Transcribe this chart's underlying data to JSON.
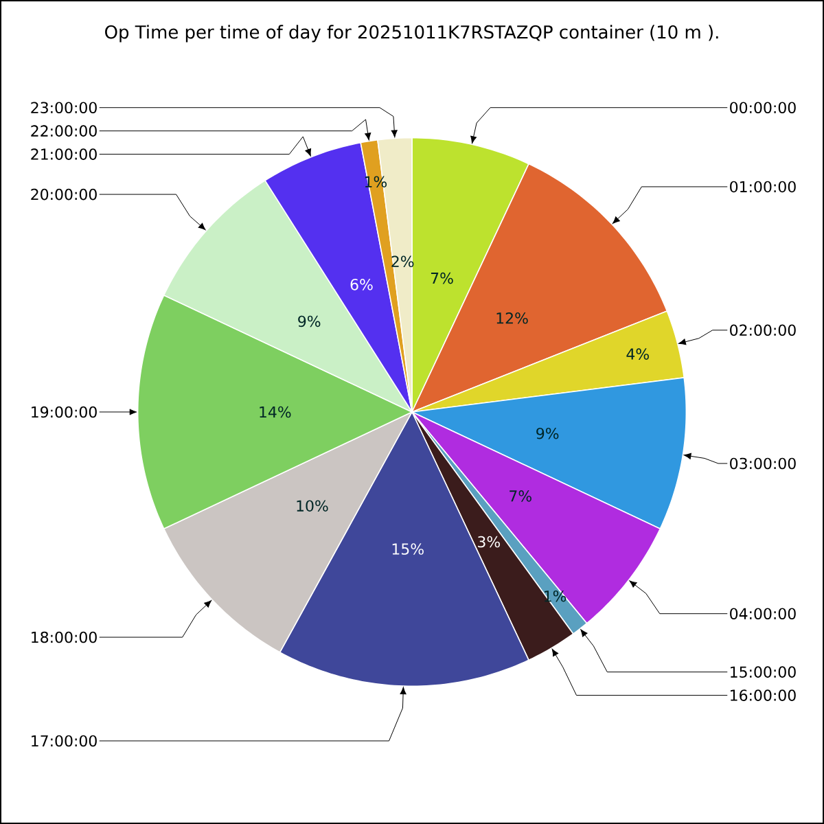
{
  "chart_data": {
    "type": "pie",
    "title": "Op Time per time of day for 20251011K7RSTAZQP container (10 m ).",
    "categories": [
      "00:00:00",
      "01:00:00",
      "02:00:00",
      "03:00:00",
      "04:00:00",
      "15:00:00",
      "16:00:00",
      "17:00:00",
      "18:00:00",
      "19:00:00",
      "20:00:00",
      "21:00:00",
      "22:00:00",
      "23:00:00"
    ],
    "values": [
      7,
      12,
      4,
      9,
      7,
      1,
      3,
      15,
      10,
      14,
      9,
      6,
      1,
      2
    ],
    "value_labels": [
      "7%",
      "12%",
      "4%",
      "9%",
      "7%",
      "1%",
      "3%",
      "15%",
      "10%",
      "14%",
      "9%",
      "6%",
      "1%",
      "2%"
    ],
    "colors": [
      "#bde22e",
      "#e06530",
      "#e0d62a",
      "#3098e0",
      "#b02ce0",
      "#5aa0c0",
      "#3b1c1c",
      "#3f479a",
      "#cbc5c2",
      "#7ecf60",
      "#caf0c6",
      "#5430f0",
      "#e0a020",
      "#f0ecc8"
    ]
  }
}
